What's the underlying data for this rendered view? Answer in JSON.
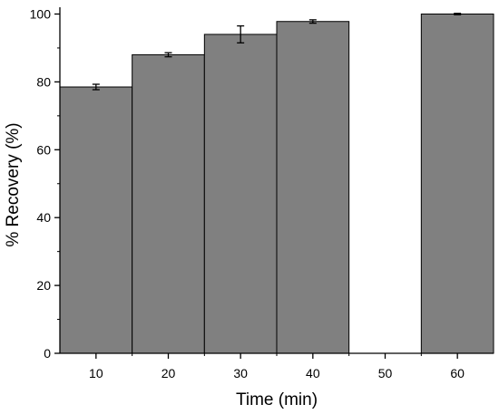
{
  "chart_data": {
    "type": "bar",
    "xlabel": "Time (min)",
    "ylabel": "% Recovery (%)",
    "ylim": [
      0,
      102
    ],
    "xlim": [
      5,
      65
    ],
    "x_ticks": [
      10,
      20,
      30,
      40,
      50,
      60
    ],
    "y_ticks": [
      0,
      20,
      40,
      60,
      80,
      100
    ],
    "grid": false,
    "bar_color": "#808080",
    "categories": [
      10,
      20,
      30,
      40,
      60
    ],
    "values": [
      78.5,
      88.0,
      94.0,
      97.8,
      100.0
    ],
    "errors": [
      0.8,
      0.6,
      2.5,
      0.5,
      0.2
    ]
  }
}
